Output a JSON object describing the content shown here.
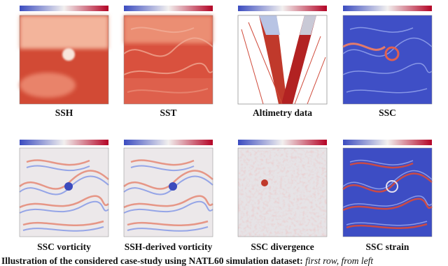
{
  "panels": [
    {
      "title": "SSH"
    },
    {
      "title": "SST"
    },
    {
      "title": "Altimetry data"
    },
    {
      "title": "SSC"
    },
    {
      "title": "SSC vorticity"
    },
    {
      "title": "SSH-derived vorticity"
    },
    {
      "title": "SSC divergence"
    },
    {
      "title": "SSC strain"
    }
  ],
  "caption": {
    "lead": "Illustration of the considered case-study using NATL60 simulation dataset:",
    "rest": "first row, from left"
  }
}
